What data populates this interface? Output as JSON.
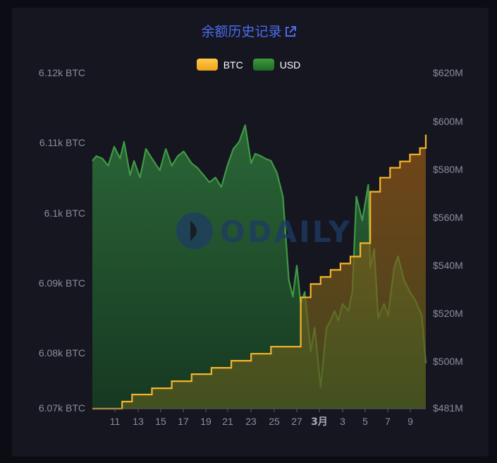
{
  "title": "余额历史记录",
  "legend": [
    {
      "label": "BTC",
      "color": "#f5b52a"
    },
    {
      "label": "USD",
      "color": "#2f8a33"
    }
  ],
  "watermark": "ODAILY",
  "chart_data": {
    "type": "area",
    "x_tick_labels": [
      "11",
      "13",
      "15",
      "17",
      "19",
      "21",
      "23",
      "25",
      "27",
      "3月",
      "3",
      "5",
      "7",
      "9"
    ],
    "y_left": {
      "ticks": [
        "6.07k BTC",
        "6.08k BTC",
        "6.09k BTC",
        "6.1k BTC",
        "6.11k BTC",
        "6.12k BTC"
      ],
      "range": [
        6070.2,
        6117.9
      ]
    },
    "y_right": {
      "ticks": [
        "$481M",
        "$500M",
        "$520M",
        "$540M",
        "$560M",
        "$580M",
        "$600M",
        "$620M"
      ],
      "range": [
        481,
        622
      ]
    },
    "series": [
      {
        "name": "BTC",
        "color": "#f5b52a",
        "axis": "left",
        "x": [
          0.0,
          0.5,
          1.5,
          2.0,
          3.0,
          4.0,
          5.0,
          6.0,
          7.0,
          8.0,
          9.0,
          9.5,
          10.5,
          11.0,
          11.5,
          12.0,
          12.5,
          13.0,
          13.5,
          14.0,
          14.5,
          15.0,
          15.5,
          16.0,
          16.5,
          16.8
        ],
        "values": [
          6070.2,
          6070.2,
          6071.2,
          6072.2,
          6073.1,
          6074.1,
          6075.1,
          6076.0,
          6077.0,
          6078.0,
          6079.0,
          6079.0,
          6086.0,
          6087.9,
          6088.9,
          6089.9,
          6090.8,
          6091.8,
          6093.7,
          6101.0,
          6103.0,
          6104.4,
          6105.3,
          6106.3,
          6107.2,
          6109.1
        ]
      },
      {
        "name": "USD",
        "color": "#2f8a33",
        "axis": "right",
        "x": [
          0.0,
          0.2,
          0.5,
          0.8,
          1.1,
          1.4,
          1.6,
          1.9,
          2.1,
          2.4,
          2.7,
          3.0,
          3.4,
          3.7,
          4.0,
          4.3,
          4.6,
          5.0,
          5.3,
          5.6,
          5.9,
          6.2,
          6.5,
          6.8,
          7.1,
          7.4,
          7.7,
          8.0,
          8.2,
          8.5,
          8.7,
          9.0,
          9.3,
          9.6,
          9.9,
          10.1,
          10.3,
          10.5,
          10.7,
          11.0,
          11.2,
          11.5,
          11.8,
          12.0,
          12.2,
          12.4,
          12.6,
          12.9,
          13.1,
          13.3,
          13.6,
          13.9,
          14.0,
          14.2,
          14.4,
          14.7,
          14.9,
          15.2,
          15.4,
          15.7,
          16.0,
          16.3,
          16.6,
          16.8
        ],
        "values": [
          585,
          587,
          586,
          583,
          591,
          586,
          593,
          579,
          585,
          578,
          590,
          586,
          581,
          590,
          583,
          587,
          589,
          584,
          582,
          579,
          576,
          578,
          574,
          583,
          590,
          593,
          600,
          584,
          588,
          587,
          586,
          585,
          580,
          570,
          535,
          528,
          541,
          525,
          530,
          505,
          515,
          490,
          515,
          518,
          522,
          518,
          525,
          522,
          530,
          570,
          560,
          575,
          540,
          548,
          519,
          525,
          520,
          540,
          545,
          535,
          530,
          526,
          520,
          500
        ]
      }
    ]
  }
}
